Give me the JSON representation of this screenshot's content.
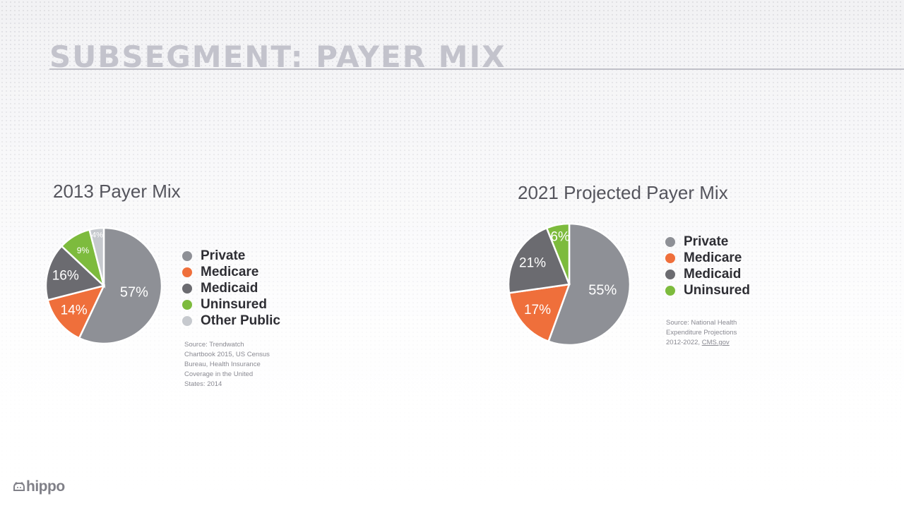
{
  "page": {
    "title": "SUBSEGMENT: PAYER MIX"
  },
  "chart_data": [
    {
      "type": "pie",
      "title": "2013 Payer Mix",
      "categories": [
        "Private",
        "Medicare",
        "Medicaid",
        "Uninsured",
        "Other Public"
      ],
      "values": [
        57,
        14,
        16,
        9,
        4
      ],
      "labels": [
        "57%",
        "14%",
        "16%",
        "9%",
        "4%"
      ],
      "colors": [
        "#8e9096",
        "#ef6f3b",
        "#6b6b70",
        "#7dbb3d",
        "#c6c9ce"
      ],
      "legend": "right",
      "source": {
        "lines": [
          "Source: Trendwatch",
          "Chartbook 2015, US Census",
          "Bureau, Health Insurance",
          "Coverage in the United",
          "States: 2014"
        ]
      }
    },
    {
      "type": "pie",
      "title": "2021 Projected Payer Mix",
      "categories": [
        "Private",
        "Medicare",
        "Medicaid",
        "Uninsured"
      ],
      "values": [
        55,
        17,
        21,
        6
      ],
      "labels": [
        "55%",
        "17%",
        "21%",
        "6%"
      ],
      "colors": [
        "#8e9096",
        "#ef6f3b",
        "#6b6b70",
        "#7dbb3d"
      ],
      "legend": "right",
      "source": {
        "lines": [
          "Source: National Health",
          "Expenditure Projections"
        ],
        "last_prefix": "2012-2022, ",
        "link": "CMS.gov"
      }
    }
  ],
  "logo": {
    "text": "hippo",
    "icon": "hippo-icon"
  }
}
